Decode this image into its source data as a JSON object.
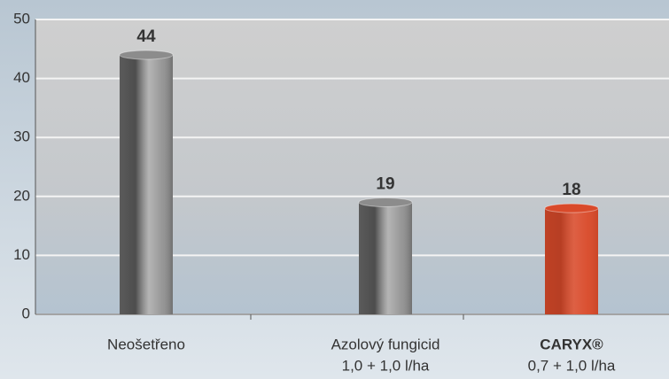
{
  "chart_data": {
    "type": "bar",
    "categories": [
      "Neošetřeno",
      "Azolový fungicid",
      "CARYX®"
    ],
    "category_doses": [
      null,
      "1,0 + 1,0 l/ha",
      "0,7 + 1,0 l/ha"
    ],
    "values": [
      44,
      19,
      18
    ],
    "colors": [
      "#8c8c8c",
      "#8c8c8c",
      "#d94a2a"
    ],
    "bold_category": 2,
    "ylim": [
      0,
      50
    ],
    "yticks": [
      0,
      10,
      20,
      30,
      40,
      50
    ],
    "grid": true
  }
}
